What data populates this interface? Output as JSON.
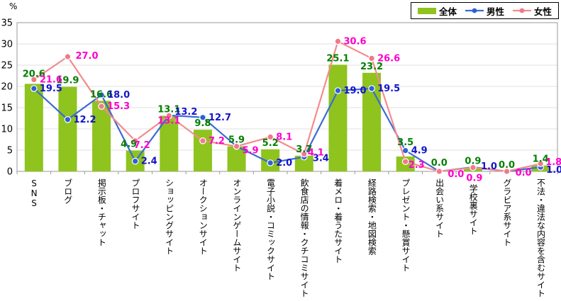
{
  "chart": {
    "unit_label": "%"
  },
  "chart_data": {
    "type": "bar+line",
    "title": "",
    "unit": "%",
    "ylim": [
      0,
      35
    ],
    "yticks": [
      0,
      5,
      10,
      15,
      20,
      25,
      30,
      35
    ],
    "grid": true,
    "legend_position": "top-right",
    "categories": [
      "SNS",
      "ブログ",
      "掲示板・チャット",
      "プロフサイト",
      "ショッピングサイト",
      "オークションサイト",
      "オンラインゲームサイト",
      "電子小説・コミックサイト",
      "飲食店の情報・クチコミサイト",
      "着メロ・着うたサイト",
      "経路検索・地図検索",
      "プレゼント・懸賞サイト",
      "出会い系サイト",
      "学校裏サイト",
      "グラビア系サイト",
      "不法・違法な内容を含むサイト"
    ],
    "series": [
      {
        "name": "全体",
        "type": "bar",
        "color": "#8FC31E",
        "label_color": "#008000",
        "values": [
          20.6,
          19.9,
          16.6,
          4.9,
          13.1,
          9.8,
          5.9,
          5.2,
          3.7,
          25.1,
          23.2,
          3.5,
          0.0,
          0.9,
          0.0,
          1.4
        ]
      },
      {
        "name": "男性",
        "type": "line",
        "color": "#3B6BD6",
        "marker_color": "#2F5FD6",
        "label_color": "#1414CC",
        "values": [
          19.5,
          12.2,
          18.0,
          2.4,
          13.2,
          12.7,
          5.9,
          2.0,
          3.4,
          19.0,
          19.5,
          4.9,
          0.0,
          1.0,
          0.0,
          1.0
        ],
        "unlabeled_points": [
          6,
          12,
          14
        ]
      },
      {
        "name": "女性",
        "type": "line",
        "color": "#F48B8B",
        "marker_color": "#F0798C",
        "label_color": "#FF00CC",
        "values": [
          21.6,
          27.0,
          15.3,
          7.2,
          13.1,
          7.2,
          5.9,
          8.1,
          4.1,
          30.6,
          26.6,
          2.3,
          0.0,
          0.9,
          0.0,
          1.8
        ],
        "unlabeled_points": []
      }
    ]
  }
}
